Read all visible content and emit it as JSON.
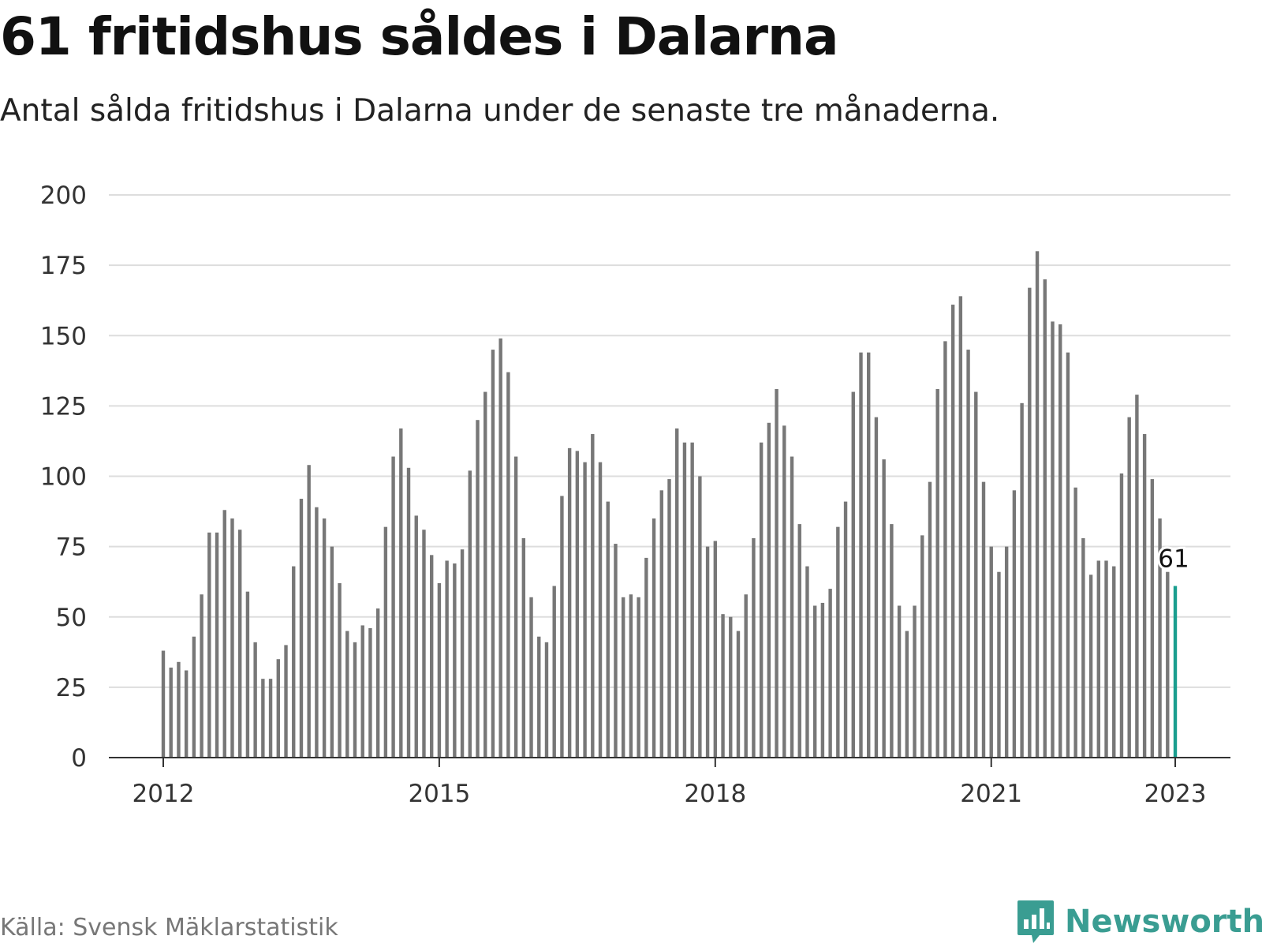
{
  "chart_data": {
    "type": "bar",
    "title": "61 fritidshus såldes i Dalarna",
    "subtitle": "Antal sålda fritidshus i Dalarna under de senaste tre månaderna.",
    "x_start": "2012-01",
    "x_end": "2023-01",
    "x_ticks": [
      "2012",
      "2015",
      "2018",
      "2021",
      "2023"
    ],
    "y_ticks": [
      0,
      25,
      50,
      75,
      100,
      125,
      150,
      175,
      200
    ],
    "ylim": [
      0,
      200
    ],
    "grid": true,
    "values": [
      38,
      32,
      34,
      31,
      43,
      58,
      80,
      80,
      88,
      85,
      81,
      59,
      41,
      28,
      28,
      35,
      40,
      68,
      92,
      104,
      89,
      85,
      75,
      62,
      45,
      41,
      47,
      46,
      53,
      82,
      107,
      117,
      103,
      86,
      81,
      72,
      62,
      70,
      69,
      74,
      102,
      120,
      130,
      145,
      149,
      137,
      107,
      78,
      57,
      43,
      41,
      61,
      93,
      110,
      109,
      105,
      115,
      105,
      91,
      76,
      57,
      58,
      57,
      71,
      85,
      95,
      99,
      117,
      112,
      112,
      100,
      75,
      77,
      51,
      50,
      45,
      58,
      78,
      112,
      119,
      131,
      118,
      107,
      83,
      68,
      54,
      55,
      60,
      82,
      91,
      130,
      144,
      144,
      121,
      106,
      83,
      54,
      45,
      54,
      79,
      98,
      131,
      148,
      161,
      164,
      145,
      130,
      98,
      75,
      66,
      75,
      95,
      126,
      167,
      180,
      170,
      155,
      154,
      144,
      96,
      78,
      65,
      70,
      70,
      68,
      101,
      121,
      129,
      115,
      99,
      85,
      66,
      61
    ],
    "highlight": {
      "label": "61",
      "value": 61,
      "color": "#1a9e8f"
    },
    "bar_color": "#777777",
    "source": "Källa: Svensk Mäklarstatistik",
    "brand": "Newsworthy"
  }
}
